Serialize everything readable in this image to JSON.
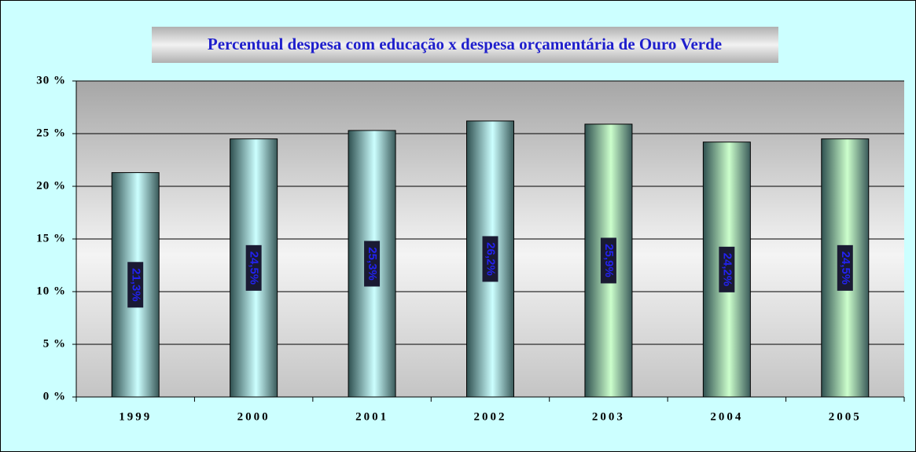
{
  "chart_data": {
    "type": "bar",
    "title": "Percentual despesa com educação x despesa orçamentária de Ouro Verde",
    "categories": [
      "1999",
      "2000",
      "2001",
      "2002",
      "2003",
      "2004",
      "2005"
    ],
    "values": [
      21.3,
      24.5,
      25.3,
      26.2,
      25.9,
      24.2,
      24.5
    ],
    "value_labels": [
      "21,3%",
      "24,5%",
      "25,3%",
      "26,2%",
      "25,9%",
      "24,2%",
      "24,5%"
    ],
    "colors": [
      "#ccffff",
      "#ccffff",
      "#ccffff",
      "#ccffff",
      "#ccffcc",
      "#ccffcc",
      "#ccffcc"
    ],
    "ylim": [
      0,
      30
    ],
    "yticks": [
      {
        "value": 0,
        "label": "0 %"
      },
      {
        "value": 5,
        "label": "5 %"
      },
      {
        "value": 10,
        "label": "10 %"
      },
      {
        "value": 15,
        "label": "15 %"
      },
      {
        "value": 20,
        "label": "20 %"
      },
      {
        "value": 25,
        "label": "25 %"
      },
      {
        "value": 30,
        "label": "30 %"
      }
    ],
    "grid": true
  }
}
